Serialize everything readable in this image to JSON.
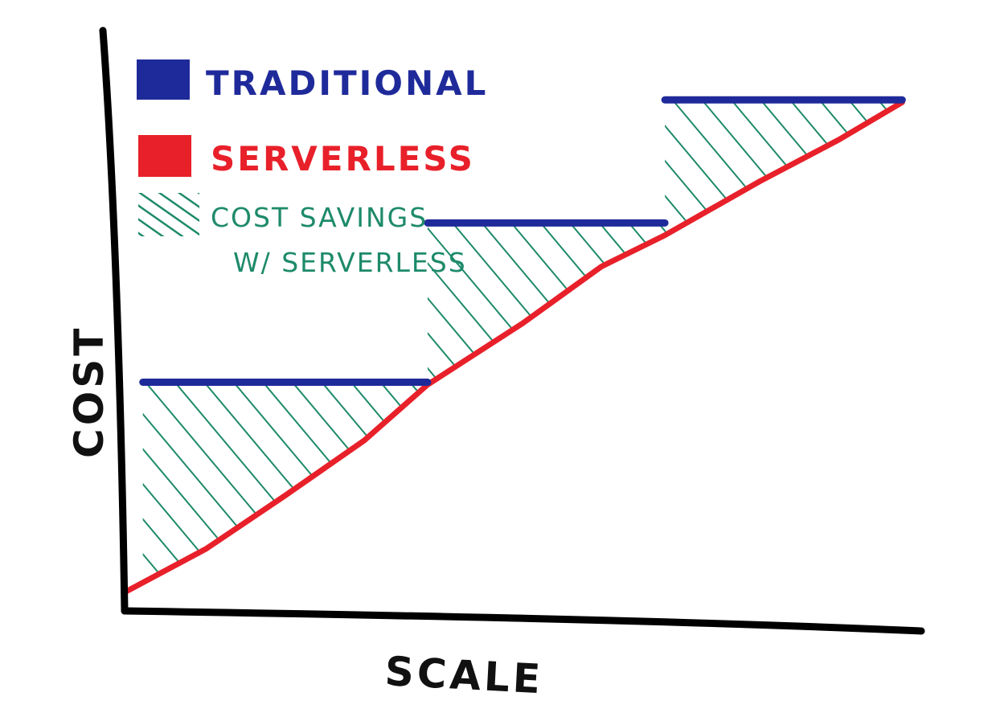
{
  "chart_data": {
    "type": "line",
    "xlabel": "SCALE",
    "ylabel": "COST",
    "legend_position": "top-left",
    "xlim": [
      0,
      100
    ],
    "ylim": [
      0,
      100
    ],
    "grid": false,
    "series": [
      {
        "name": "TRADITIONAL",
        "color": "#1f2a9a",
        "style": "step",
        "values": [
          {
            "x0": 2,
            "x1": 38,
            "y": 37.6
          },
          {
            "x0": 38,
            "x1": 68,
            "y": 63.6
          },
          {
            "x0": 68,
            "x1": 98,
            "y": 83.7
          }
        ]
      },
      {
        "name": "SERVERLESS",
        "color": "#e8202a",
        "style": "line",
        "x": [
          0,
          10,
          20,
          30,
          38,
          50,
          60,
          68,
          80,
          90,
          98
        ],
        "y": [
          3.5,
          10.4,
          19.1,
          28.1,
          37.2,
          47.2,
          56.5,
          61.6,
          70.4,
          77.2,
          83.3
        ]
      }
    ],
    "annotations": [
      {
        "name": "COST SAVINGS",
        "line2": "W/ SERVERLESS",
        "color": "#1e8a6a",
        "style": "hatched area between TRADITIONAL and SERVERLESS"
      }
    ]
  }
}
